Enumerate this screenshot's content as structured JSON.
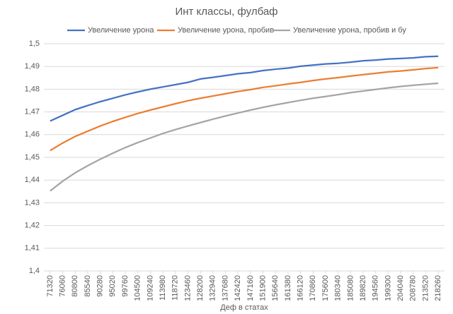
{
  "chart_data": {
    "type": "line",
    "title": "Инт классы, фулбаф",
    "x_label": "Деф в статах",
    "categories": [
      71320,
      76060,
      80800,
      85540,
      90280,
      95020,
      99760,
      104500,
      109240,
      113980,
      118720,
      123460,
      128200,
      132940,
      137680,
      142420,
      147160,
      151900,
      156640,
      161380,
      166120,
      170860,
      175600,
      180340,
      185080,
      189820,
      194560,
      199300,
      204040,
      208780,
      213520,
      218260
    ],
    "series": [
      {
        "name": "Увеличение урона",
        "color": "#4472c4",
        "values": [
          1.466,
          1.4685,
          1.471,
          1.4728,
          1.4745,
          1.476,
          1.4775,
          1.4788,
          1.48,
          1.481,
          1.482,
          1.483,
          1.4845,
          1.4852,
          1.486,
          1.4868,
          1.4873,
          1.4882,
          1.4888,
          1.4893,
          1.4901,
          1.4906,
          1.4911,
          1.4914,
          1.4919,
          1.4925,
          1.4928,
          1.4933,
          1.4935,
          1.4938,
          1.4943,
          1.4945
        ]
      },
      {
        "name": "Увеличение урона, пробив",
        "color": "#ed7d31",
        "values": [
          1.453,
          1.4563,
          1.4592,
          1.4615,
          1.4638,
          1.4658,
          1.4676,
          1.4693,
          1.4708,
          1.4722,
          1.4736,
          1.4749,
          1.476,
          1.477,
          1.478,
          1.479,
          1.4798,
          1.4808,
          1.4815,
          1.4823,
          1.483,
          1.4838,
          1.4845,
          1.4851,
          1.4858,
          1.4864,
          1.487,
          1.4876,
          1.488,
          1.4885,
          1.4891,
          1.4895
        ]
      },
      {
        "name": "Увеличение урона, пробив и бу",
        "color": "#a5a5a5",
        "values": [
          1.4352,
          1.4395,
          1.4432,
          1.4463,
          1.4492,
          1.4518,
          1.4543,
          1.4565,
          1.4585,
          1.4605,
          1.4622,
          1.4638,
          1.4653,
          1.4668,
          1.4682,
          1.4695,
          1.4708,
          1.472,
          1.4731,
          1.4741,
          1.4751,
          1.476,
          1.4768,
          1.4776,
          1.4785,
          1.4792,
          1.4799,
          1.4806,
          1.4812,
          1.4817,
          1.4822,
          1.4826
        ]
      }
    ],
    "ylim": [
      1.4,
      1.5
    ],
    "yticks": [
      {
        "value": 1.4,
        "label": "1,4"
      },
      {
        "value": 1.41,
        "label": "1,41"
      },
      {
        "value": 1.42,
        "label": "1,42"
      },
      {
        "value": 1.43,
        "label": "1,43"
      },
      {
        "value": 1.44,
        "label": "1,44"
      },
      {
        "value": 1.45,
        "label": "1,45"
      },
      {
        "value": 1.46,
        "label": "1,46"
      },
      {
        "value": 1.47,
        "label": "1,47"
      },
      {
        "value": 1.48,
        "label": "1,48"
      },
      {
        "value": 1.49,
        "label": "1,49"
      },
      {
        "value": 1.5,
        "label": "1,5"
      }
    ],
    "grid": true,
    "legend": "top"
  }
}
